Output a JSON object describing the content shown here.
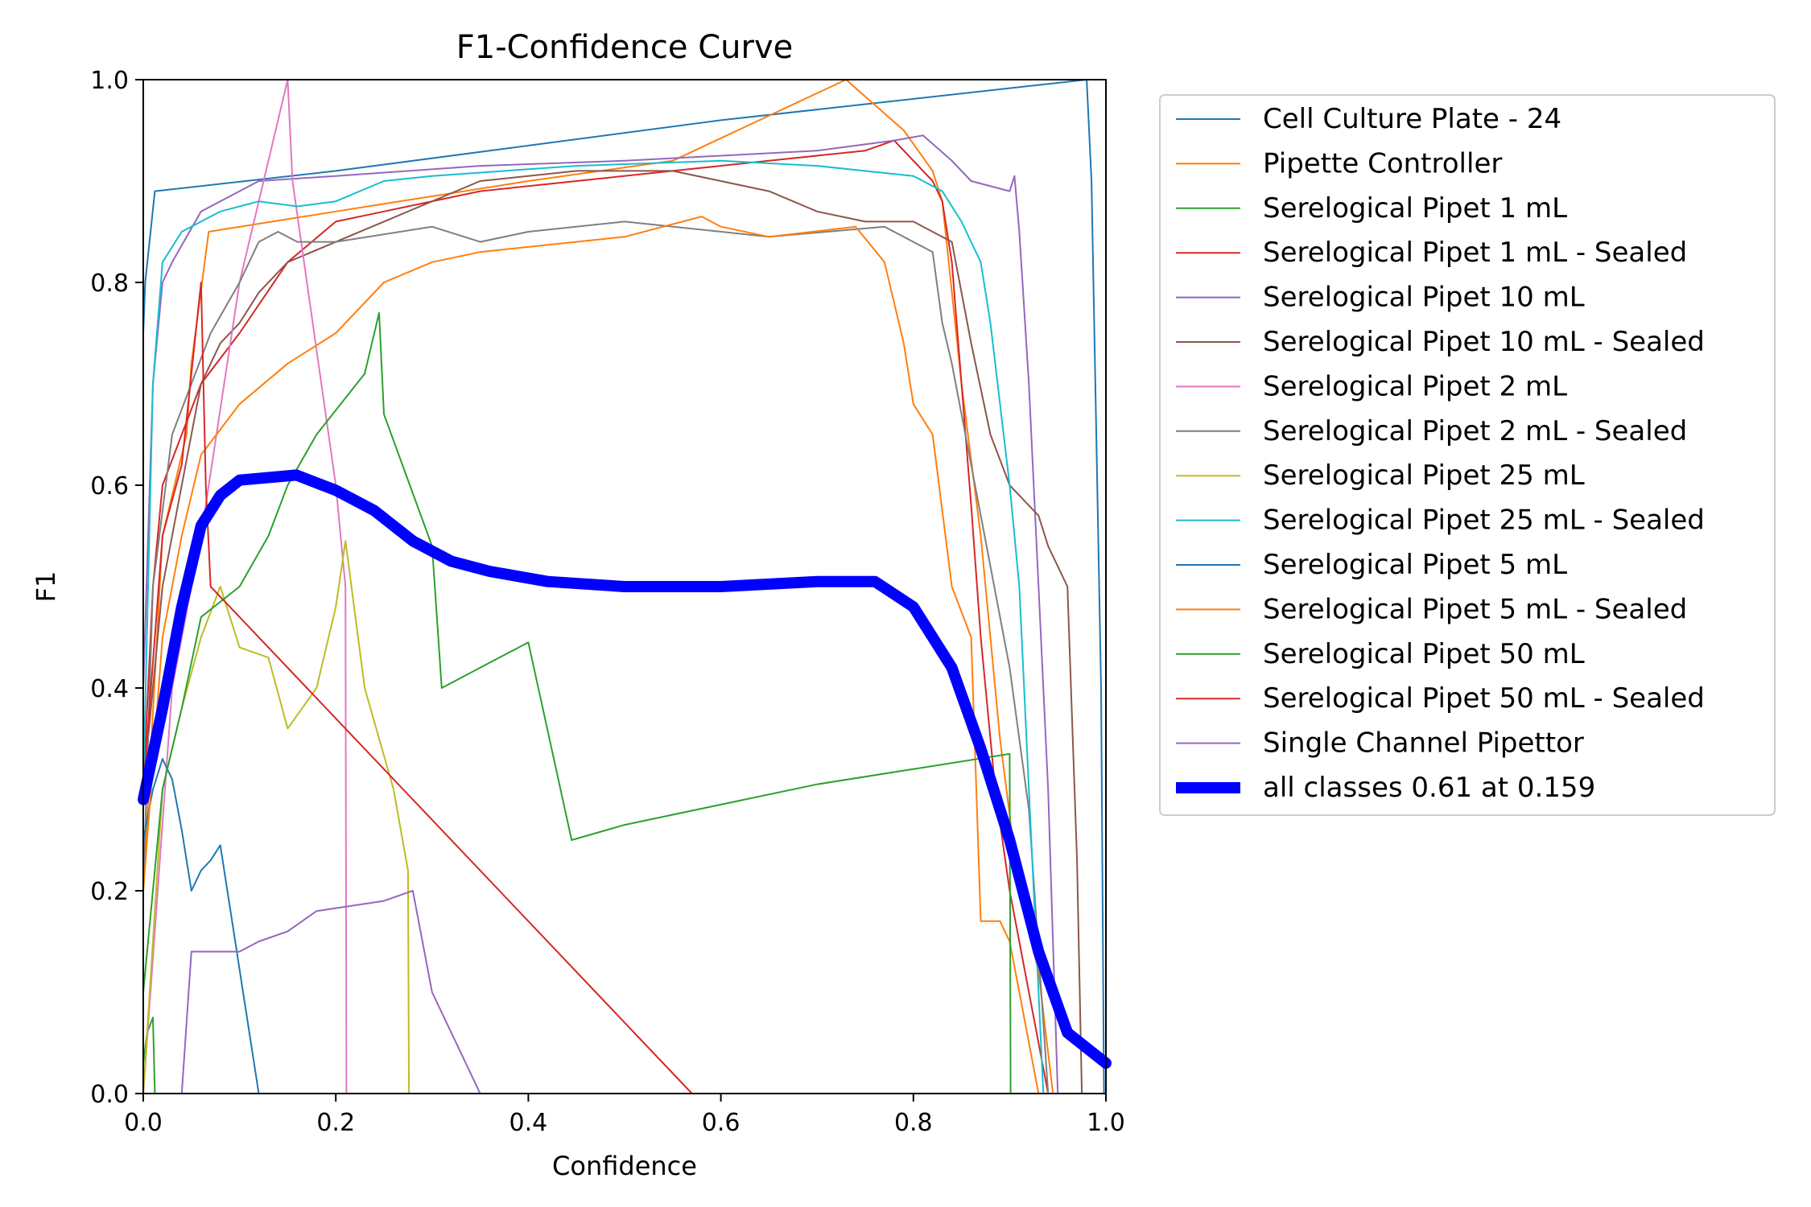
{
  "chart_data": {
    "type": "line",
    "title": "F1-Confidence Curve",
    "xlabel": "Confidence",
    "ylabel": "F1",
    "xlim": [
      0,
      1
    ],
    "ylim": [
      0,
      1
    ],
    "xticks": [
      "0.0",
      "0.2",
      "0.4",
      "0.6",
      "0.8",
      "1.0"
    ],
    "yticks": [
      "0.0",
      "0.2",
      "0.4",
      "0.6",
      "0.8",
      "1.0"
    ],
    "grid": false,
    "legend_position": "outside-right",
    "series": [
      {
        "name": "Cell Culture Plate - 24",
        "color": "#1f77b4",
        "width": 1,
        "points": [
          [
            0,
            0.75
          ],
          [
            0.002,
            0.8
          ],
          [
            0.012,
            0.89
          ],
          [
            0.2,
            0.91
          ],
          [
            0.6,
            0.96
          ],
          [
            0.98,
            1.0
          ],
          [
            0.985,
            0.9
          ],
          [
            0.995,
            0.4
          ],
          [
            0.998,
            0.0
          ]
        ]
      },
      {
        "name": "Pipette Controller",
        "color": "#ff7f0e",
        "width": 1,
        "points": [
          [
            0,
            0.2
          ],
          [
            0.02,
            0.55
          ],
          [
            0.045,
            0.65
          ],
          [
            0.05,
            0.72
          ],
          [
            0.068,
            0.85
          ],
          [
            0.2,
            0.87
          ],
          [
            0.4,
            0.9
          ],
          [
            0.55,
            0.92
          ],
          [
            0.64,
            0.96
          ],
          [
            0.73,
            1.0
          ],
          [
            0.79,
            0.95
          ],
          [
            0.82,
            0.91
          ],
          [
            0.83,
            0.88
          ],
          [
            0.85,
            0.7
          ],
          [
            0.87,
            0.55
          ],
          [
            0.89,
            0.35
          ],
          [
            0.91,
            0.2
          ],
          [
            0.93,
            0.12
          ],
          [
            0.945,
            0.0
          ]
        ]
      },
      {
        "name": "Serelogical Pipet 1 mL",
        "color": "#2ca02c",
        "width": 1,
        "points": [
          [
            0,
            0.03
          ],
          [
            0.004,
            0.06
          ],
          [
            0.008,
            0.07
          ],
          [
            0.01,
            0.075
          ],
          [
            0.012,
            0.0
          ],
          [
            1,
            0.0
          ]
        ]
      },
      {
        "name": "Serelogical Pipet 1 mL - Sealed",
        "color": "#d62728",
        "width": 1,
        "points": [
          [
            0,
            0.3
          ],
          [
            0.01,
            0.5
          ],
          [
            0.02,
            0.6
          ],
          [
            0.04,
            0.65
          ],
          [
            0.06,
            0.7
          ],
          [
            0.1,
            0.75
          ],
          [
            0.15,
            0.82
          ],
          [
            0.2,
            0.86
          ],
          [
            0.25,
            0.87
          ],
          [
            0.35,
            0.89
          ],
          [
            0.45,
            0.9
          ],
          [
            0.55,
            0.91
          ],
          [
            0.65,
            0.92
          ],
          [
            0.75,
            0.93
          ],
          [
            0.78,
            0.94
          ],
          [
            0.82,
            0.9
          ],
          [
            0.83,
            0.88
          ],
          [
            0.84,
            0.82
          ],
          [
            0.85,
            0.7
          ],
          [
            0.86,
            0.58
          ],
          [
            0.87,
            0.45
          ],
          [
            0.885,
            0.3
          ],
          [
            0.9,
            0.2
          ],
          [
            0.92,
            0.1
          ],
          [
            0.94,
            0.0
          ]
        ]
      },
      {
        "name": "Serelogical Pipet 10 mL",
        "color": "#9467bd",
        "width": 1,
        "points": [
          [
            0,
            0.4
          ],
          [
            0.01,
            0.7
          ],
          [
            0.02,
            0.8
          ],
          [
            0.03,
            0.82
          ],
          [
            0.06,
            0.87
          ],
          [
            0.1,
            0.89
          ],
          [
            0.12,
            0.9
          ],
          [
            0.2,
            0.905
          ],
          [
            0.35,
            0.915
          ],
          [
            0.5,
            0.92
          ],
          [
            0.7,
            0.93
          ],
          [
            0.78,
            0.94
          ],
          [
            0.81,
            0.945
          ],
          [
            0.84,
            0.92
          ],
          [
            0.86,
            0.9
          ],
          [
            0.9,
            0.89
          ],
          [
            0.905,
            0.905
          ],
          [
            0.91,
            0.85
          ],
          [
            0.92,
            0.7
          ],
          [
            0.93,
            0.5
          ],
          [
            0.94,
            0.3
          ],
          [
            0.95,
            0.0
          ]
        ]
      },
      {
        "name": "Serelogical Pipet 10 mL - Sealed",
        "color": "#8c564b",
        "width": 1,
        "points": [
          [
            0,
            0.3
          ],
          [
            0.02,
            0.5
          ],
          [
            0.04,
            0.6
          ],
          [
            0.06,
            0.7
          ],
          [
            0.08,
            0.74
          ],
          [
            0.1,
            0.76
          ],
          [
            0.12,
            0.79
          ],
          [
            0.15,
            0.82
          ],
          [
            0.2,
            0.84
          ],
          [
            0.25,
            0.86
          ],
          [
            0.3,
            0.88
          ],
          [
            0.35,
            0.9
          ],
          [
            0.45,
            0.91
          ],
          [
            0.55,
            0.91
          ],
          [
            0.6,
            0.9
          ],
          [
            0.65,
            0.89
          ],
          [
            0.7,
            0.87
          ],
          [
            0.75,
            0.86
          ],
          [
            0.8,
            0.86
          ],
          [
            0.84,
            0.84
          ],
          [
            0.86,
            0.74
          ],
          [
            0.88,
            0.65
          ],
          [
            0.9,
            0.6
          ],
          [
            0.93,
            0.57
          ],
          [
            0.94,
            0.54
          ],
          [
            0.96,
            0.5
          ],
          [
            0.97,
            0.23
          ],
          [
            0.975,
            0.0
          ]
        ]
      },
      {
        "name": "Serelogical Pipet 2 mL",
        "color": "#e377c2",
        "width": 1,
        "points": [
          [
            0,
            0.0
          ],
          [
            0.03,
            0.4
          ],
          [
            0.06,
            0.55
          ],
          [
            0.1,
            0.8
          ],
          [
            0.15,
            1.0
          ],
          [
            0.155,
            0.9
          ],
          [
            0.2,
            0.6
          ],
          [
            0.21,
            0.5
          ],
          [
            0.211,
            0.0
          ],
          [
            1,
            0.0
          ]
        ]
      },
      {
        "name": "Serelogical Pipet 2 mL - Sealed",
        "color": "#7f7f7f",
        "width": 1,
        "points": [
          [
            0,
            0.2
          ],
          [
            0.01,
            0.5
          ],
          [
            0.03,
            0.65
          ],
          [
            0.05,
            0.7
          ],
          [
            0.07,
            0.75
          ],
          [
            0.1,
            0.8
          ],
          [
            0.12,
            0.84
          ],
          [
            0.14,
            0.85
          ],
          [
            0.16,
            0.84
          ],
          [
            0.2,
            0.84
          ],
          [
            0.3,
            0.855
          ],
          [
            0.35,
            0.84
          ],
          [
            0.4,
            0.85
          ],
          [
            0.5,
            0.86
          ],
          [
            0.65,
            0.845
          ],
          [
            0.77,
            0.855
          ],
          [
            0.82,
            0.83
          ],
          [
            0.83,
            0.76
          ],
          [
            0.84,
            0.72
          ],
          [
            0.86,
            0.62
          ],
          [
            0.88,
            0.52
          ],
          [
            0.9,
            0.42
          ],
          [
            0.92,
            0.28
          ],
          [
            0.94,
            0.0
          ]
        ]
      },
      {
        "name": "Serelogical Pipet 25 mL",
        "color": "#bcbd22",
        "width": 1,
        "points": [
          [
            0,
            0.0
          ],
          [
            0.02,
            0.3
          ],
          [
            0.04,
            0.38
          ],
          [
            0.06,
            0.45
          ],
          [
            0.08,
            0.5
          ],
          [
            0.1,
            0.44
          ],
          [
            0.13,
            0.43
          ],
          [
            0.15,
            0.36
          ],
          [
            0.18,
            0.4
          ],
          [
            0.2,
            0.48
          ],
          [
            0.21,
            0.545
          ],
          [
            0.23,
            0.4
          ],
          [
            0.26,
            0.3
          ],
          [
            0.275,
            0.22
          ],
          [
            0.276,
            0.0
          ],
          [
            1,
            0.0
          ]
        ]
      },
      {
        "name": "Serelogical Pipet 25 mL - Sealed",
        "color": "#17becf",
        "width": 1,
        "points": [
          [
            0,
            0.3
          ],
          [
            0.01,
            0.7
          ],
          [
            0.02,
            0.82
          ],
          [
            0.04,
            0.85
          ],
          [
            0.08,
            0.87
          ],
          [
            0.12,
            0.88
          ],
          [
            0.16,
            0.875
          ],
          [
            0.2,
            0.88
          ],
          [
            0.25,
            0.9
          ],
          [
            0.3,
            0.905
          ],
          [
            0.45,
            0.915
          ],
          [
            0.6,
            0.92
          ],
          [
            0.7,
            0.915
          ],
          [
            0.8,
            0.905
          ],
          [
            0.83,
            0.89
          ],
          [
            0.85,
            0.86
          ],
          [
            0.87,
            0.82
          ],
          [
            0.88,
            0.76
          ],
          [
            0.9,
            0.6
          ],
          [
            0.91,
            0.5
          ],
          [
            0.92,
            0.3
          ],
          [
            0.935,
            0.0
          ]
        ]
      },
      {
        "name": "Serelogical Pipet 5 mL",
        "color": "#1f77b4",
        "width": 1,
        "points": [
          [
            0,
            0.25
          ],
          [
            0.01,
            0.3
          ],
          [
            0.02,
            0.33
          ],
          [
            0.03,
            0.31
          ],
          [
            0.04,
            0.26
          ],
          [
            0.05,
            0.2
          ],
          [
            0.06,
            0.22
          ],
          [
            0.07,
            0.23
          ],
          [
            0.08,
            0.245
          ],
          [
            0.12,
            0.0
          ],
          [
            1,
            0.0
          ]
        ]
      },
      {
        "name": "Serelogical Pipet 5 mL - Sealed",
        "color": "#ff7f0e",
        "width": 1,
        "points": [
          [
            0,
            0.2
          ],
          [
            0.02,
            0.45
          ],
          [
            0.04,
            0.55
          ],
          [
            0.06,
            0.63
          ],
          [
            0.1,
            0.68
          ],
          [
            0.15,
            0.72
          ],
          [
            0.2,
            0.75
          ],
          [
            0.25,
            0.8
          ],
          [
            0.3,
            0.82
          ],
          [
            0.35,
            0.83
          ],
          [
            0.4,
            0.835
          ],
          [
            0.5,
            0.845
          ],
          [
            0.58,
            0.865
          ],
          [
            0.6,
            0.855
          ],
          [
            0.65,
            0.845
          ],
          [
            0.74,
            0.855
          ],
          [
            0.77,
            0.82
          ],
          [
            0.79,
            0.74
          ],
          [
            0.8,
            0.68
          ],
          [
            0.82,
            0.65
          ],
          [
            0.84,
            0.5
          ],
          [
            0.86,
            0.45
          ],
          [
            0.87,
            0.17
          ],
          [
            0.89,
            0.17
          ],
          [
            0.9,
            0.15
          ],
          [
            0.91,
            0.1
          ],
          [
            0.93,
            0.0
          ]
        ]
      },
      {
        "name": "Serelogical Pipet 50 mL",
        "color": "#2ca02c",
        "width": 1,
        "points": [
          [
            0,
            0.1
          ],
          [
            0.02,
            0.3
          ],
          [
            0.04,
            0.38
          ],
          [
            0.06,
            0.47
          ],
          [
            0.1,
            0.5
          ],
          [
            0.13,
            0.55
          ],
          [
            0.15,
            0.6
          ],
          [
            0.18,
            0.65
          ],
          [
            0.23,
            0.71
          ],
          [
            0.245,
            0.77
          ],
          [
            0.25,
            0.67
          ],
          [
            0.3,
            0.54
          ],
          [
            0.31,
            0.4
          ],
          [
            0.35,
            0.42
          ],
          [
            0.4,
            0.445
          ],
          [
            0.445,
            0.25
          ],
          [
            0.5,
            0.265
          ],
          [
            0.6,
            0.285
          ],
          [
            0.7,
            0.305
          ],
          [
            0.8,
            0.32
          ],
          [
            0.9,
            0.335
          ],
          [
            0.901,
            0.0
          ],
          [
            1,
            0.0
          ]
        ]
      },
      {
        "name": "Serelogical Pipet 50 mL - Sealed",
        "color": "#d62728",
        "width": 1,
        "points": [
          [
            0,
            0.3
          ],
          [
            0.02,
            0.55
          ],
          [
            0.04,
            0.62
          ],
          [
            0.06,
            0.8
          ],
          [
            0.065,
            0.6
          ],
          [
            0.07,
            0.5
          ],
          [
            0.57,
            0.0
          ],
          [
            1,
            0.0
          ]
        ]
      },
      {
        "name": "Single Channel Pipettor",
        "color": "#9467bd",
        "width": 1,
        "points": [
          [
            0,
            0.0
          ],
          [
            0.04,
            0.0
          ],
          [
            0.05,
            0.14
          ],
          [
            0.1,
            0.14
          ],
          [
            0.12,
            0.15
          ],
          [
            0.15,
            0.16
          ],
          [
            0.18,
            0.18
          ],
          [
            0.25,
            0.19
          ],
          [
            0.28,
            0.2
          ],
          [
            0.3,
            0.1
          ],
          [
            0.35,
            0.0
          ],
          [
            1,
            0.0
          ]
        ]
      },
      {
        "name": "all classes 0.61 at 0.159",
        "color": "#0000ff",
        "width": 7,
        "points": [
          [
            0,
            0.29
          ],
          [
            0.02,
            0.38
          ],
          [
            0.04,
            0.48
          ],
          [
            0.06,
            0.56
          ],
          [
            0.08,
            0.59
          ],
          [
            0.1,
            0.605
          ],
          [
            0.159,
            0.61
          ],
          [
            0.2,
            0.595
          ],
          [
            0.24,
            0.575
          ],
          [
            0.28,
            0.545
          ],
          [
            0.32,
            0.525
          ],
          [
            0.36,
            0.515
          ],
          [
            0.42,
            0.505
          ],
          [
            0.5,
            0.5
          ],
          [
            0.6,
            0.5
          ],
          [
            0.7,
            0.505
          ],
          [
            0.76,
            0.505
          ],
          [
            0.8,
            0.48
          ],
          [
            0.84,
            0.42
          ],
          [
            0.87,
            0.34
          ],
          [
            0.9,
            0.25
          ],
          [
            0.93,
            0.14
          ],
          [
            0.96,
            0.06
          ],
          [
            1,
            0.03
          ]
        ]
      }
    ]
  }
}
